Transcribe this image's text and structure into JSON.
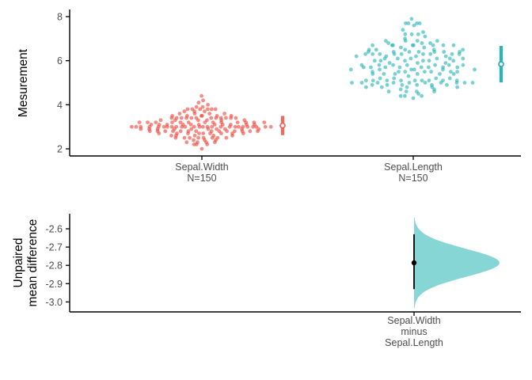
{
  "colors": {
    "red_dot": "#EF4137",
    "red_bar": "#F4675F",
    "teal_dot": "#1FB3B7",
    "teal_bar": "#29B4B8",
    "violin_fill": "#85D6D4",
    "axis": "#000000",
    "tick_label": "#4D4D4D",
    "effect_marker": "#000000"
  },
  "chart_data": [
    {
      "type": "scatter",
      "subtype": "swarm",
      "panel": "top",
      "ylabel": "Mesurement",
      "y_ticks": [
        2,
        4,
        6,
        8
      ],
      "ylim": [
        1.7,
        8.3
      ],
      "grid": "off",
      "groups": [
        {
          "name": "Sepal.Width",
          "axis_label_lines": [
            "Sepal.Width",
            "N=150"
          ],
          "n": 150,
          "mean": 3.057,
          "sd": 0.436,
          "values": [
            3.5,
            3.0,
            3.2,
            3.1,
            3.6,
            3.9,
            3.4,
            3.4,
            2.9,
            3.1,
            3.7,
            3.4,
            3.0,
            3.0,
            4.0,
            4.4,
            3.9,
            3.5,
            3.8,
            3.8,
            3.4,
            3.7,
            3.6,
            3.3,
            3.4,
            3.0,
            3.4,
            3.5,
            3.4,
            3.2,
            3.1,
            3.4,
            4.1,
            4.2,
            3.1,
            3.2,
            3.5,
            3.6,
            3.0,
            3.4,
            3.5,
            2.3,
            3.2,
            3.5,
            3.8,
            3.0,
            3.8,
            3.2,
            3.7,
            3.3,
            3.2,
            3.2,
            3.1,
            2.3,
            2.8,
            2.8,
            3.3,
            2.4,
            2.9,
            2.7,
            2.0,
            3.0,
            2.2,
            2.9,
            2.9,
            3.1,
            3.0,
            2.7,
            2.2,
            2.5,
            3.2,
            2.8,
            2.5,
            2.8,
            2.9,
            3.0,
            2.8,
            3.0,
            2.9,
            2.6,
            2.4,
            2.4,
            2.7,
            2.7,
            3.0,
            3.4,
            3.1,
            2.3,
            3.0,
            2.5,
            2.6,
            3.0,
            2.6,
            2.3,
            2.7,
            3.0,
            2.9,
            2.9,
            2.5,
            2.8,
            3.3,
            2.7,
            3.0,
            2.9,
            3.0,
            3.0,
            2.5,
            2.9,
            2.5,
            3.6,
            3.2,
            2.7,
            3.0,
            2.5,
            2.8,
            3.2,
            3.0,
            3.8,
            2.6,
            2.2,
            3.2,
            2.8,
            2.8,
            2.7,
            3.3,
            3.2,
            2.8,
            3.0,
            2.8,
            3.0,
            2.8,
            3.8,
            2.8,
            2.8,
            2.6,
            3.0,
            3.4,
            3.1,
            3.0,
            3.1,
            3.1,
            3.1,
            2.7,
            3.2,
            3.3,
            3.0,
            2.5,
            3.0,
            3.4,
            3.0
          ]
        },
        {
          "name": "Sepal.Length",
          "axis_label_lines": [
            "Sepal.Length",
            "N=150"
          ],
          "n": 150,
          "mean": 5.843,
          "sd": 0.828,
          "values": [
            5.1,
            4.9,
            4.7,
            4.6,
            5.0,
            5.4,
            4.6,
            5.0,
            4.4,
            4.9,
            5.4,
            4.8,
            4.8,
            4.3,
            5.8,
            5.7,
            5.4,
            5.1,
            5.7,
            5.1,
            5.4,
            5.1,
            4.6,
            5.1,
            4.8,
            5.0,
            5.0,
            5.2,
            5.2,
            4.7,
            4.8,
            5.4,
            5.2,
            5.5,
            4.9,
            5.0,
            5.5,
            4.9,
            4.4,
            5.1,
            5.0,
            4.5,
            4.4,
            5.0,
            5.1,
            4.8,
            5.1,
            4.6,
            5.3,
            5.0,
            7.0,
            6.4,
            6.9,
            5.5,
            6.5,
            5.7,
            6.3,
            4.9,
            6.6,
            5.2,
            5.0,
            5.9,
            6.0,
            6.1,
            5.6,
            6.7,
            5.6,
            5.8,
            6.2,
            5.6,
            5.9,
            6.1,
            6.3,
            6.1,
            6.4,
            6.6,
            6.8,
            6.7,
            6.0,
            5.7,
            5.5,
            5.5,
            5.8,
            6.0,
            5.4,
            6.0,
            6.7,
            6.3,
            5.6,
            5.5,
            5.5,
            6.1,
            5.8,
            5.0,
            5.6,
            5.7,
            5.7,
            6.2,
            5.1,
            5.7,
            6.3,
            5.8,
            7.1,
            6.3,
            6.5,
            7.6,
            4.9,
            7.3,
            6.7,
            7.2,
            6.5,
            6.4,
            6.8,
            5.7,
            5.8,
            6.4,
            6.5,
            7.7,
            7.7,
            6.0,
            6.9,
            5.6,
            7.7,
            6.3,
            6.7,
            7.2,
            6.2,
            6.1,
            6.4,
            7.2,
            7.4,
            7.9,
            6.4,
            6.3,
            6.1,
            7.7,
            6.3,
            6.4,
            6.0,
            6.9,
            6.7,
            6.9,
            5.8,
            6.8,
            6.7,
            6.7,
            6.3,
            6.5,
            6.2,
            5.9
          ]
        }
      ]
    },
    {
      "type": "area",
      "subtype": "halfviolin-bootstrap",
      "panel": "bottom",
      "ylabel_lines": [
        "Unpaired",
        "mean difference"
      ],
      "y_ticks": [
        -2.6,
        -2.7,
        -2.8,
        -2.9,
        -3.0
      ],
      "ylim": [
        -3.05,
        -2.55
      ],
      "grid": "off",
      "x_label_lines": [
        "Sepal.Width",
        "minus",
        "Sepal.Length"
      ],
      "effect": {
        "comparison": "Sepal.Width minus Sepal.Length",
        "mean_difference": -2.786,
        "ci_low": -2.93,
        "ci_high": -2.63,
        "bootstrap_sd": 0.077
      }
    }
  ]
}
